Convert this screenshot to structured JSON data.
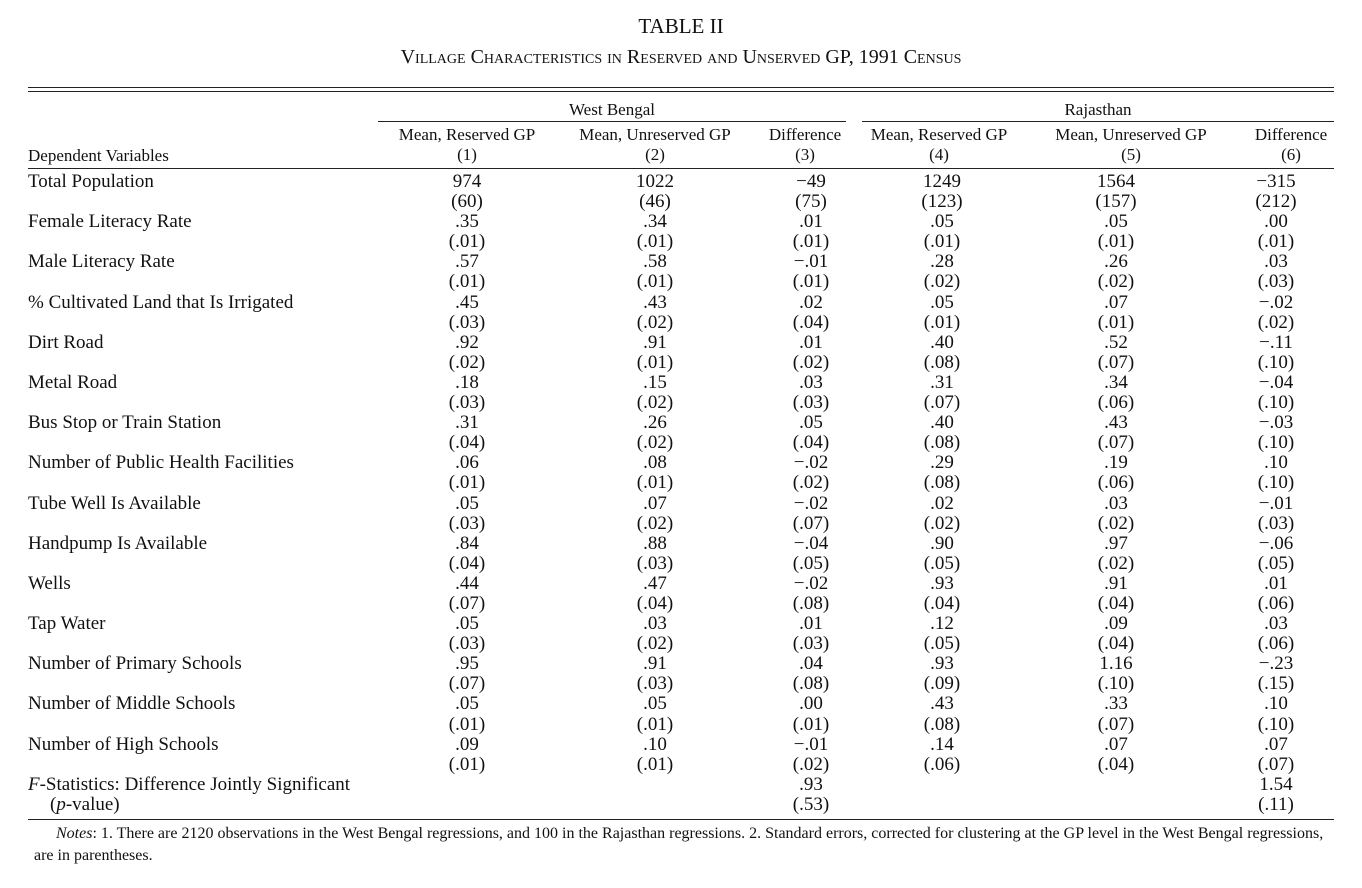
{
  "title": "TABLE II",
  "subtitle": "Village Characteristics in Reserved and Unserved GP, 1991 Census",
  "groups": [
    "West Bengal",
    "Rajasthan"
  ],
  "columns": [
    {
      "label": "Mean, Reserved GP",
      "num": "(1)"
    },
    {
      "label": "Mean, Unreserved GP",
      "num": "(2)"
    },
    {
      "label": "Difference",
      "num": "(3)"
    },
    {
      "label": "Mean, Reserved GP",
      "num": "(4)"
    },
    {
      "label": "Mean, Unreserved GP",
      "num": "(5)"
    },
    {
      "label": "Difference",
      "num": "(6)"
    }
  ],
  "dep_var_header": "Dependent Variables",
  "rows": [
    {
      "label": "Total Population",
      "est": [
        "974",
        "1022",
        "−49",
        "1249",
        "1564",
        "−315"
      ],
      "se": [
        "(60)",
        "(46)",
        "(75)",
        "(123)",
        "(157)",
        "(212)"
      ]
    },
    {
      "label": "Female Literacy Rate",
      "est": [
        ".35",
        ".34",
        ".01",
        ".05",
        ".05",
        ".00"
      ],
      "se": [
        "(.01)",
        "(.01)",
        "(.01)",
        "(.01)",
        "(.01)",
        "(.01)"
      ]
    },
    {
      "label": "Male Literacy Rate",
      "est": [
        ".57",
        ".58",
        "−.01",
        ".28",
        ".26",
        ".03"
      ],
      "se": [
        "(.01)",
        "(.01)",
        "(.01)",
        "(.02)",
        "(.02)",
        "(.03)"
      ]
    },
    {
      "label": "% Cultivated Land that Is Irrigated",
      "est": [
        ".45",
        ".43",
        ".02",
        ".05",
        ".07",
        "−.02"
      ],
      "se": [
        "(.03)",
        "(.02)",
        "(.04)",
        "(.01)",
        "(.01)",
        "(.02)"
      ]
    },
    {
      "label": "Dirt Road",
      "est": [
        ".92",
        ".91",
        ".01",
        ".40",
        ".52",
        "−.11"
      ],
      "se": [
        "(.02)",
        "(.01)",
        "(.02)",
        "(.08)",
        "(.07)",
        "(.10)"
      ]
    },
    {
      "label": "Metal Road",
      "est": [
        ".18",
        ".15",
        ".03",
        ".31",
        ".34",
        "−.04"
      ],
      "se": [
        "(.03)",
        "(.02)",
        "(.03)",
        "(.07)",
        "(.06)",
        "(.10)"
      ]
    },
    {
      "label": "Bus Stop or Train Station",
      "est": [
        ".31",
        ".26",
        ".05",
        ".40",
        ".43",
        "−.03"
      ],
      "se": [
        "(.04)",
        "(.02)",
        "(.04)",
        "(.08)",
        "(.07)",
        "(.10)"
      ]
    },
    {
      "label": "Number of Public Health Facilities",
      "est": [
        ".06",
        ".08",
        "−.02",
        ".29",
        ".19",
        ".10"
      ],
      "se": [
        "(.01)",
        "(.01)",
        "(.02)",
        "(.08)",
        "(.06)",
        "(.10)"
      ]
    },
    {
      "label": "Tube Well Is Available",
      "est": [
        ".05",
        ".07",
        "−.02",
        ".02",
        ".03",
        "−.01"
      ],
      "se": [
        "(.03)",
        "(.02)",
        "(.07)",
        "(.02)",
        "(.02)",
        "(.03)"
      ]
    },
    {
      "label": "Handpump Is Available",
      "est": [
        ".84",
        ".88",
        "−.04",
        ".90",
        ".97",
        "−.06"
      ],
      "se": [
        "(.04)",
        "(.03)",
        "(.05)",
        "(.05)",
        "(.02)",
        "(.05)"
      ]
    },
    {
      "label": "Wells",
      "est": [
        ".44",
        ".47",
        "−.02",
        ".93",
        ".91",
        ".01"
      ],
      "se": [
        "(.07)",
        "(.04)",
        "(.08)",
        "(.04)",
        "(.04)",
        "(.06)"
      ]
    },
    {
      "label": "Tap Water",
      "est": [
        ".05",
        ".03",
        ".01",
        ".12",
        ".09",
        ".03"
      ],
      "se": [
        "(.03)",
        "(.02)",
        "(.03)",
        "(.05)",
        "(.04)",
        "(.06)"
      ]
    },
    {
      "label": "Number of Primary Schools",
      "est": [
        ".95",
        ".91",
        ".04",
        ".93",
        "1.16",
        "−.23"
      ],
      "se": [
        "(.07)",
        "(.03)",
        "(.08)",
        "(.09)",
        "(.10)",
        "(.15)"
      ]
    },
    {
      "label": "Number of Middle Schools",
      "est": [
        ".05",
        ".05",
        ".00",
        ".43",
        ".33",
        ".10"
      ],
      "se": [
        "(.01)",
        "(.01)",
        "(.01)",
        "(.08)",
        "(.07)",
        "(.10)"
      ]
    },
    {
      "label": "Number of High Schools",
      "est": [
        ".09",
        ".10",
        "−.01",
        ".14",
        ".07",
        ".07"
      ],
      "se": [
        "(.01)",
        "(.01)",
        "(.02)",
        "(.06)",
        "(.04)",
        "(.07)"
      ]
    }
  ],
  "fstat": {
    "label_italic": "F",
    "label_rest": "-Statistics: Difference Jointly Significant",
    "p_label": "(p-value)",
    "wb": ".93",
    "wb_p": "(.53)",
    "rj": "1.54",
    "rj_p": "(.11)"
  },
  "notes": "Notes: 1. There are 2120 observations in the West Bengal regressions, and 100 in the Rajasthan regressions. 2. Standard errors, corrected for clustering at the GP level in the West Bengal regressions, are in parentheses."
}
